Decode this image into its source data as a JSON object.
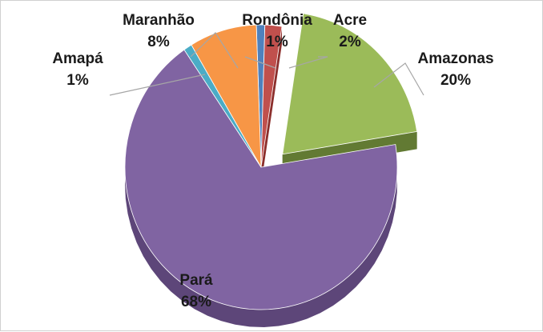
{
  "chart_data": {
    "type": "pie",
    "title": "",
    "slices": [
      {
        "label": "Rondônia",
        "value": 1,
        "pct_label": "1%",
        "color": "#4f81bd",
        "side": "#2f5f92",
        "explode": 0
      },
      {
        "label": "Acre",
        "value": 2,
        "pct_label": "2%",
        "color": "#c0504d",
        "side": "#8c2f2c",
        "explode": 0
      },
      {
        "label": "Amazonas",
        "value": 20,
        "pct_label": "20%",
        "color": "#9bbb59",
        "side": "#627a33",
        "explode": 1
      },
      {
        "label": "Pará",
        "value": 68,
        "pct_label": "68%",
        "color": "#8064a2",
        "side": "#5d4679",
        "explode": 0
      },
      {
        "label": "Amapá",
        "value": 1,
        "pct_label": "1%",
        "color": "#4bacc6",
        "side": "#226d81",
        "explode": 0
      },
      {
        "label": "Maranhão",
        "value": 8,
        "pct_label": "8%",
        "color": "#f79646",
        "side": "#b8641f",
        "explode": 0
      }
    ],
    "legend": "none",
    "style": "3d-exploded"
  }
}
